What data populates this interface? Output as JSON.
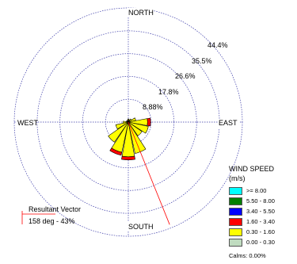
{
  "chart_data": {
    "type": "wind-rose",
    "direction_labels": [
      "NORTH",
      "EAST",
      "SOUTH",
      "WEST"
    ],
    "ring_labels": [
      "8.88%",
      "17.8%",
      "26.6%",
      "35.5%",
      "44.4%"
    ],
    "ring_values": [
      8.88,
      17.8,
      26.6,
      35.5,
      44.4
    ],
    "sector_count": 16,
    "sector_directions_deg": [
      0,
      22.5,
      45,
      67.5,
      90,
      112.5,
      135,
      157.5,
      180,
      202.5,
      225,
      247.5,
      270,
      292.5,
      315,
      337.5
    ],
    "series": [
      {
        "name": "0.30 - 1.60",
        "color": "#ffff00",
        "values": [
          1.2,
          1.0,
          1.5,
          3.0,
          7.5,
          8.0,
          6.5,
          12.5,
          13.5,
          12.0,
          9.5,
          5.0,
          2.0,
          0.8,
          0.6,
          0.8
        ]
      },
      {
        "name": "1.60 - 3.40",
        "color": "#ff0000",
        "values": [
          0,
          0,
          0,
          0,
          1.2,
          0,
          0,
          0,
          1.2,
          1.2,
          0,
          0,
          0,
          0,
          0,
          0
        ]
      }
    ],
    "legend": {
      "title": "WIND SPEED",
      "units": "(m/s)",
      "entries": [
        {
          "label": ">= 8.00",
          "color": "#00ffff"
        },
        {
          "label": "5.50 - 8.00",
          "color": "#008000"
        },
        {
          "label": "3.40 - 5.50",
          "color": "#0000ff"
        },
        {
          "label": "1.60 - 3.40",
          "color": "#ff0000"
        },
        {
          "label": "0.30 - 1.60",
          "color": "#ffff00"
        },
        {
          "label": "0.00 - 0.30",
          "color": "#c0dcc0"
        }
      ],
      "placement": "bottom-right"
    },
    "calms": "Calms: 0.00%",
    "resultant_vector": {
      "label": "Resultant Vector",
      "value_text": "158 deg - 43%",
      "direction_deg": 158,
      "percent": 43,
      "color": "#ff0000"
    },
    "grid": true
  }
}
